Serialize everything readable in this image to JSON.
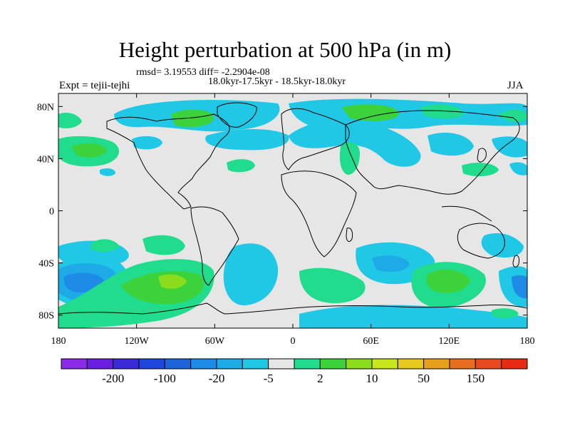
{
  "title": "Height perturbation at 500 hPa (in m)",
  "stats": "rmsd= 3.19553 diff= -2.2904e-08",
  "period": "18.0kyr-17.5kyr - 18.5kyr-18.0kyr",
  "experiment": "Expt = tejii-tejhi",
  "season": "JJA",
  "lat_ticks": [
    {
      "value": 80,
      "label": "80N"
    },
    {
      "value": 40,
      "label": "40N"
    },
    {
      "value": 0,
      "label": "0"
    },
    {
      "value": -40,
      "label": "40S"
    },
    {
      "value": -80,
      "label": "80S"
    }
  ],
  "lon_ticks": [
    {
      "value": -180,
      "label": "180"
    },
    {
      "value": -120,
      "label": "120W"
    },
    {
      "value": -60,
      "label": "60W"
    },
    {
      "value": 0,
      "label": "0"
    },
    {
      "value": 60,
      "label": "60E"
    },
    {
      "value": 120,
      "label": "120E"
    },
    {
      "value": 180,
      "label": "180"
    }
  ],
  "colors": {
    "land_bg": "#e6e6e6",
    "coast": "#000000"
  },
  "colorbar": {
    "colors": [
      "#8a2be6",
      "#6a1ee0",
      "#3a2ad8",
      "#1e46dc",
      "#1e64d8",
      "#1e8ce6",
      "#1eaae6",
      "#20c8e6",
      "#e6e6e6",
      "#20dc8c",
      "#3cd23c",
      "#8cdc1e",
      "#c8e61e",
      "#e6c81e",
      "#e6a01e",
      "#e66e1e",
      "#e64a1e",
      "#e62a14"
    ],
    "labels": [
      {
        "after": 1,
        "text": "-200"
      },
      {
        "after": 3,
        "text": "-100"
      },
      {
        "after": 5,
        "text": "-20"
      },
      {
        "after": 7,
        "text": "-5"
      },
      {
        "after": 9,
        "text": "2"
      },
      {
        "after": 11,
        "text": "10"
      },
      {
        "after": 13,
        "text": "50"
      },
      {
        "after": 15,
        "text": "150"
      }
    ]
  }
}
